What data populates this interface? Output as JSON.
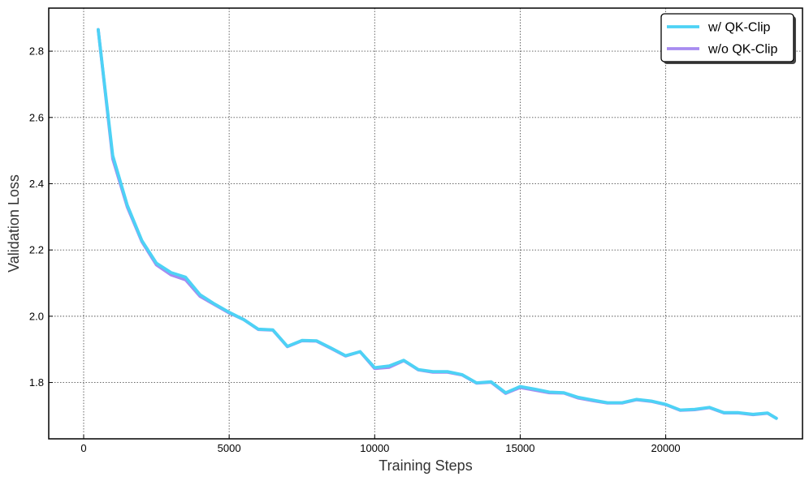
{
  "chart_data": {
    "type": "line",
    "xlabel": "Training Steps",
    "ylabel": "Validation Loss",
    "xlim": [
      -1200,
      24700
    ],
    "ylim": [
      1.63,
      2.93
    ],
    "x_ticks": [
      0,
      5000,
      10000,
      15000,
      20000
    ],
    "y_ticks": [
      1.8,
      2.0,
      2.2,
      2.4,
      2.6,
      2.8
    ],
    "x_tick_labels": [
      "0",
      "5000",
      "10000",
      "15000",
      "20000"
    ],
    "y_tick_labels": [
      "1.8",
      "2.0",
      "2.2",
      "2.4",
      "2.6",
      "2.8"
    ],
    "grid": true,
    "legend_position": "top-right",
    "series": [
      {
        "name": "w/o QK-Clip",
        "color": "#a78bf0",
        "x": [
          500,
          1000,
          1500,
          2000,
          2500,
          3000,
          3500,
          4000,
          4500,
          5000,
          5500,
          6000,
          6500,
          7000,
          7500,
          8000,
          8500,
          9000,
          9500,
          10000,
          10500,
          11000,
          11500,
          12000,
          12500,
          13000,
          13500,
          14000,
          14500,
          15000,
          15500,
          16000,
          16500,
          17000,
          17500,
          18000,
          18500,
          19000,
          19500,
          20000,
          20500,
          21000,
          21500,
          22000,
          22500,
          23000,
          23500,
          23800
        ],
        "y": [
          2.865,
          2.475,
          2.33,
          2.225,
          2.155,
          2.125,
          2.11,
          2.06,
          2.035,
          2.01,
          1.99,
          1.96,
          1.958,
          1.908,
          1.926,
          1.925,
          1.903,
          1.88,
          1.893,
          1.842,
          1.846,
          1.866,
          1.838,
          1.831,
          1.831,
          1.823,
          1.798,
          1.801,
          1.767,
          1.785,
          1.777,
          1.769,
          1.768,
          1.753,
          1.745,
          1.738,
          1.738,
          1.748,
          1.743,
          1.733,
          1.716,
          1.718,
          1.724,
          1.708,
          1.708,
          1.703,
          1.707,
          1.692
        ]
      },
      {
        "name": "w/ QK-Clip",
        "color": "#4dd2f5",
        "x": [
          500,
          1000,
          1500,
          2000,
          2500,
          3000,
          3500,
          4000,
          4500,
          5000,
          5500,
          6000,
          6500,
          7000,
          7500,
          8000,
          8500,
          9000,
          9500,
          10000,
          10500,
          11000,
          11500,
          12000,
          12500,
          13000,
          13500,
          14000,
          14500,
          15000,
          15500,
          16000,
          16500,
          17000,
          17500,
          18000,
          18500,
          19000,
          19500,
          20000,
          20500,
          21000,
          21500,
          22000,
          22500,
          23000,
          23500,
          23800
        ],
        "y": [
          2.865,
          2.485,
          2.335,
          2.228,
          2.16,
          2.132,
          2.118,
          2.065,
          2.037,
          2.012,
          1.99,
          1.961,
          1.959,
          1.909,
          1.927,
          1.926,
          1.904,
          1.881,
          1.893,
          1.845,
          1.85,
          1.867,
          1.839,
          1.833,
          1.833,
          1.824,
          1.799,
          1.802,
          1.769,
          1.788,
          1.78,
          1.771,
          1.769,
          1.755,
          1.747,
          1.739,
          1.739,
          1.749,
          1.744,
          1.734,
          1.717,
          1.719,
          1.725,
          1.709,
          1.709,
          1.704,
          1.708,
          1.692
        ]
      }
    ]
  }
}
